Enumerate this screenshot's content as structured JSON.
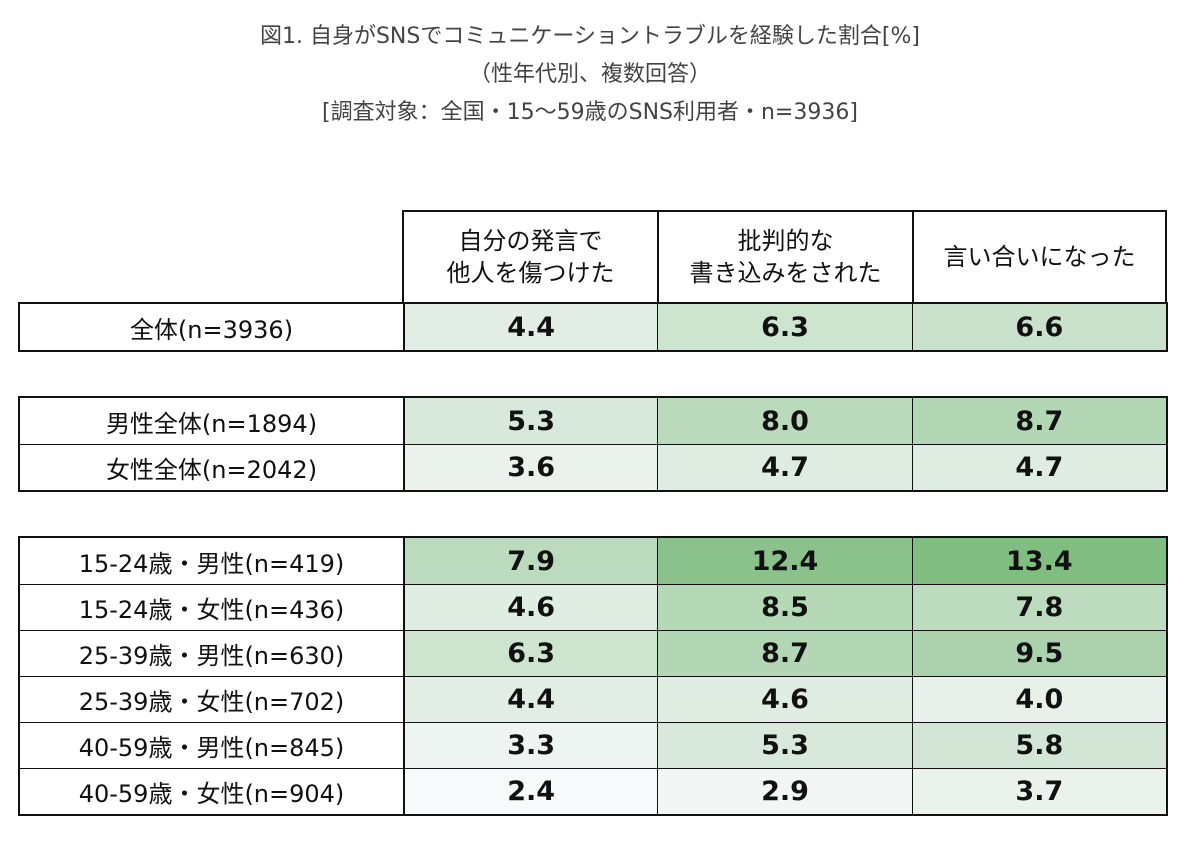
{
  "title": {
    "line1": "図1. 自身がSNSでコミュニケーショントラブルを経験した割合[%]",
    "line2": "（性年代別、複数回答）",
    "line3": "[調査対象：全国・15～59歳のSNS利用者・n=3936]"
  },
  "chart_data": {
    "type": "heatmap",
    "title": "図1. 自身がSNSでコミュニケーショントラブルを経験した割合[%]",
    "columns": [
      "自分の発言で\n他人を傷つけた",
      "批判的な\n書き込みをされた",
      "言い合いになった"
    ],
    "groups": [
      {
        "rows": [
          {
            "label": "全体(n=3936)",
            "values": [
              "4.4",
              "6.3",
              "6.6"
            ]
          }
        ]
      },
      {
        "rows": [
          {
            "label": "男性全体(n=1894)",
            "values": [
              "5.3",
              "8.0",
              "8.7"
            ]
          },
          {
            "label": "女性全体(n=2042)",
            "values": [
              "3.6",
              "4.7",
              "4.7"
            ]
          }
        ]
      },
      {
        "rows": [
          {
            "label": "15-24歳・男性(n=419)",
            "values": [
              "7.9",
              "12.4",
              "13.4"
            ]
          },
          {
            "label": "15-24歳・女性(n=436)",
            "values": [
              "4.6",
              "8.5",
              "7.8"
            ]
          },
          {
            "label": "25-39歳・男性(n=630)",
            "values": [
              "6.3",
              "8.7",
              "9.5"
            ]
          },
          {
            "label": "25-39歳・女性(n=702)",
            "values": [
              "4.4",
              "4.6",
              "4.0"
            ]
          },
          {
            "label": "40-59歳・男性(n=845)",
            "values": [
              "3.3",
              "5.3",
              "5.8"
            ]
          },
          {
            "label": "40-59歳・女性(n=904)",
            "values": [
              "2.4",
              "2.9",
              "3.7"
            ]
          }
        ]
      }
    ],
    "color_scale": {
      "min_value": 2.4,
      "max_value": 13.4,
      "low_color": "#f8f9fb",
      "high_color": "#80bd80"
    }
  }
}
